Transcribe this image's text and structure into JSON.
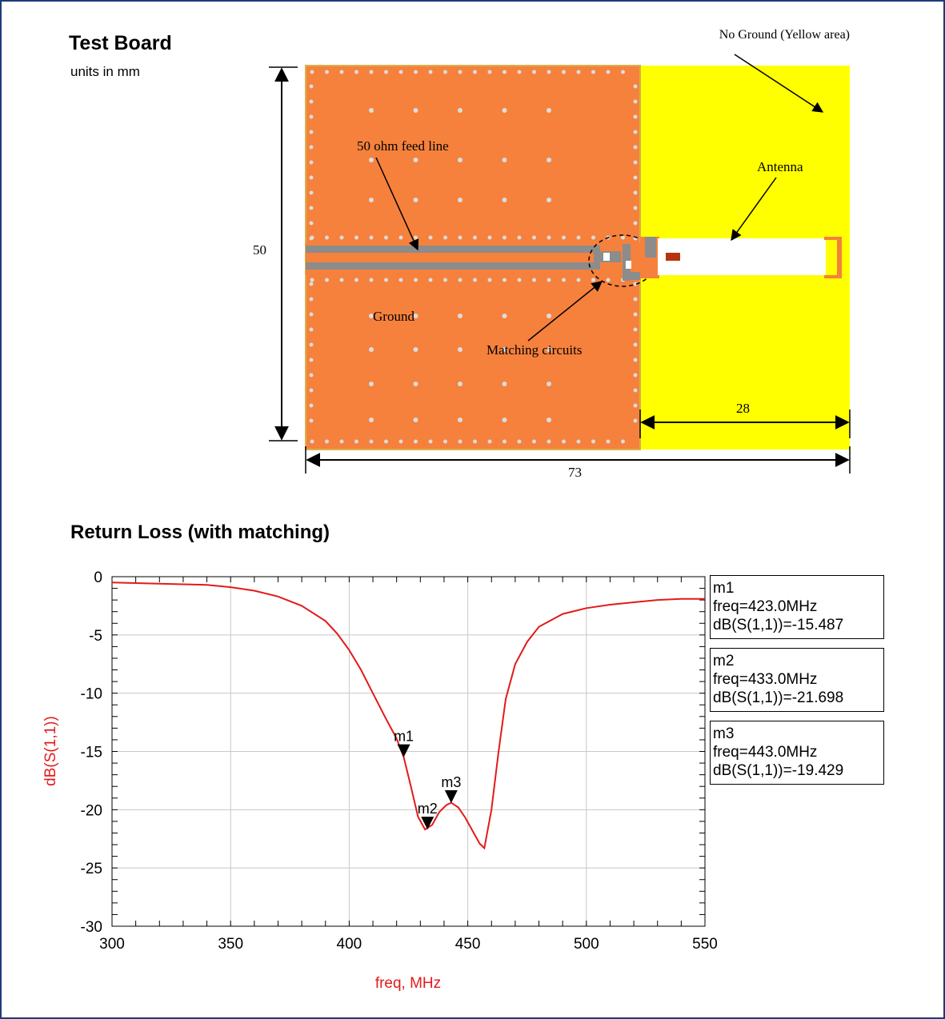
{
  "board": {
    "title": "Test Board",
    "units_note": "units in mm",
    "no_ground_label": "No Ground (Yellow area)",
    "feed_line_label": "50 ohm feed line",
    "antenna_label": "Antenna",
    "ground_label": "Ground",
    "matching_label": "Matching circuits",
    "dim_height": "50",
    "dim_antenna_width": "28",
    "dim_total_width": "73",
    "colors": {
      "ground": "#f5813c",
      "no_ground": "#ffff00",
      "feed_line": "#8c8c8c",
      "via": "#dcdcdc",
      "antenna": "#ffffff",
      "component": "#b83210"
    }
  },
  "chart_title": "Return Loss (with matching)",
  "chart_data": {
    "type": "line",
    "title": "Return Loss (with matching)",
    "xlabel": "freq, MHz",
    "ylabel": "dB(S(1,1))",
    "xlim": [
      300,
      550
    ],
    "ylim": [
      -30,
      0
    ],
    "xticks": [
      "300",
      "350",
      "400",
      "450",
      "500",
      "550"
    ],
    "yticks": [
      "0",
      "-5",
      "-10",
      "-15",
      "-20",
      "-25",
      "-30"
    ],
    "grid": true,
    "line_color": "#e31a1a",
    "series": [
      {
        "x": [
          300,
          310,
          320,
          330,
          340,
          350,
          360,
          370,
          380,
          390,
          395,
          400,
          405,
          410,
          415,
          420,
          423,
          426,
          429,
          432,
          435,
          438,
          441,
          443,
          446,
          449,
          452,
          455,
          457,
          460,
          463,
          466,
          470,
          475,
          480,
          490,
          500,
          510,
          520,
          530,
          540,
          550
        ],
        "y": [
          -0.5,
          -0.55,
          -0.6,
          -0.65,
          -0.7,
          -0.9,
          -1.2,
          -1.7,
          -2.5,
          -3.8,
          -4.9,
          -6.3,
          -8.0,
          -10.0,
          -12.0,
          -13.9,
          -15.5,
          -18.0,
          -20.6,
          -21.7,
          -21.3,
          -20.2,
          -19.6,
          -19.4,
          -19.8,
          -20.7,
          -21.8,
          -22.9,
          -23.3,
          -20.0,
          -15.0,
          -10.5,
          -7.5,
          -5.6,
          -4.3,
          -3.2,
          -2.7,
          -2.4,
          -2.2,
          -2.0,
          -1.9,
          -1.9
        ]
      }
    ],
    "markers": [
      {
        "name": "m1",
        "freq": 423.0,
        "value": -15.487,
        "line1": "m1",
        "line2": "freq=423.0MHz",
        "line3": "dB(S(1,1))=-15.487"
      },
      {
        "name": "m2",
        "freq": 433.0,
        "value": -21.698,
        "line1": "m2",
        "line2": "freq=433.0MHz",
        "line3": "dB(S(1,1))=-21.698"
      },
      {
        "name": "m3",
        "freq": 443.0,
        "value": -19.429,
        "line1": "m3",
        "line2": "freq=443.0MHz",
        "line3": "dB(S(1,1))=-19.429"
      }
    ]
  }
}
